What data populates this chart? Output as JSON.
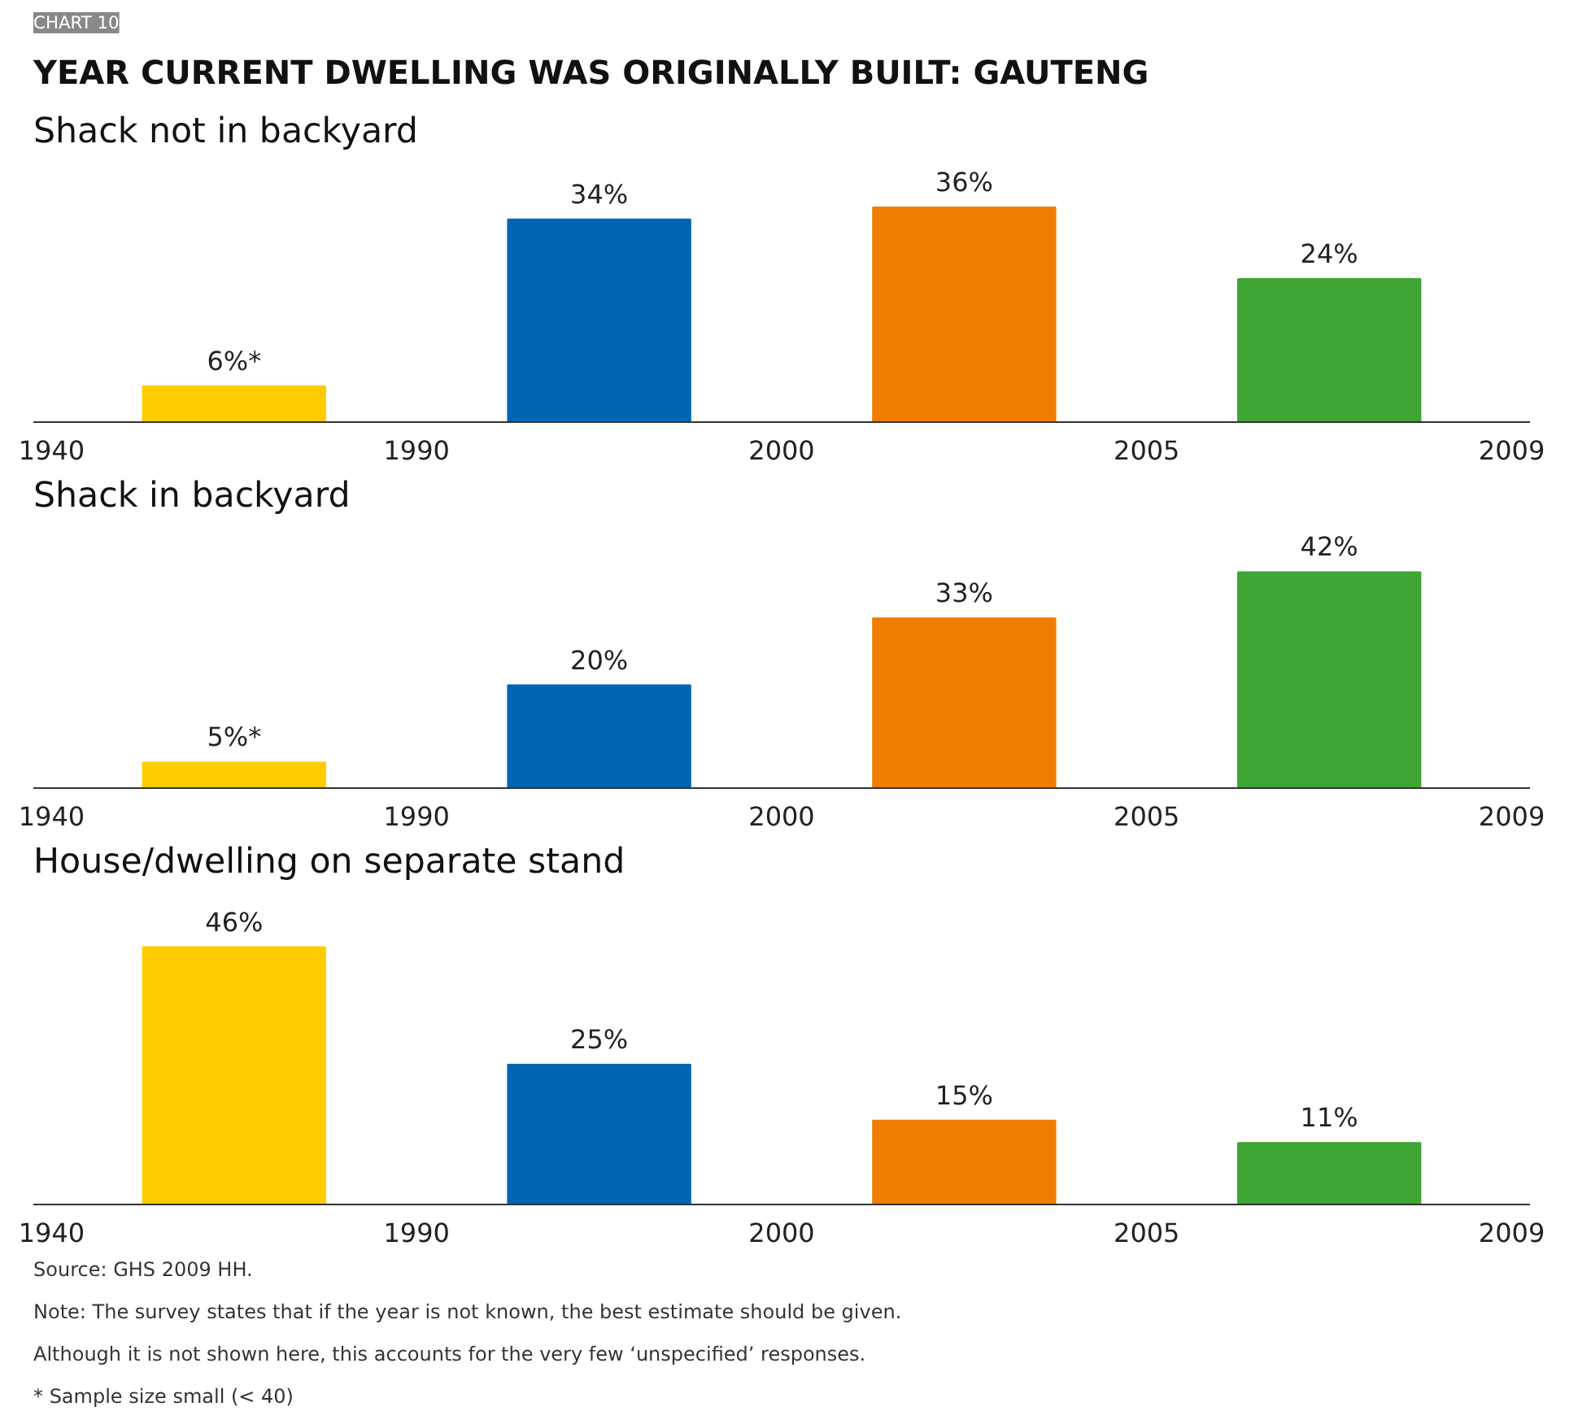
{
  "chart_data": [
    {
      "type": "bar",
      "title": "YEAR CURRENT DWELLING WAS ORIGINALLY BUILT: GAUTENG",
      "subtitle": "Shack not in backyard",
      "annotations": [
        "CHART 10",
        "1940",
        "1990",
        "2000",
        "2005",
        "2009"
      ],
      "categories": [
        null,
        null,
        null,
        null
      ],
      "values": [
        6,
        34,
        36,
        24
      ],
      "value_labels": [
        "6%*",
        "34%",
        "36%",
        "24%"
      ],
      "colors": [
        "#ffcc00",
        "#0066b3",
        "#ef7d00",
        "#3fa535"
      ]
    },
    {
      "type": "bar",
      "title": "Shack in backyard",
      "annotations": [
        "1940",
        "1990",
        "2000",
        "2005",
        "2009"
      ],
      "categories": [
        null,
        null,
        null,
        null
      ],
      "values": [
        5,
        20,
        33,
        42
      ],
      "value_labels": [
        "5%*",
        "20%",
        "33%",
        "42%"
      ],
      "colors": [
        "#ffcc00",
        "#0066b3",
        "#ef7d00",
        "#3fa535"
      ]
    },
    {
      "type": "bar",
      "title": "House/dwelling on separate stand",
      "categories": [
        null,
        null,
        null,
        null
      ],
      "values": [
        46,
        25,
        15,
        11
      ],
      "value_labels": [
        "46%",
        "25%",
        "15%",
        "11%"
      ],
      "colors": [
        "#ffcc00",
        "#0066b3",
        "#ef7d00",
        "#3fa535"
      ],
      "annotations": [
        "1940",
        "1990",
        "2000",
        "2005",
        "2009",
        "Source: GHS 2009 HH.",
        "Note: The survey states that if the year is not known, the best estimate should be given.",
        "Although it is not shown here, this accounts for the very few ‘unspecified’ responses.",
        "* Sample size small (< 40)"
      ]
    }
  ]
}
